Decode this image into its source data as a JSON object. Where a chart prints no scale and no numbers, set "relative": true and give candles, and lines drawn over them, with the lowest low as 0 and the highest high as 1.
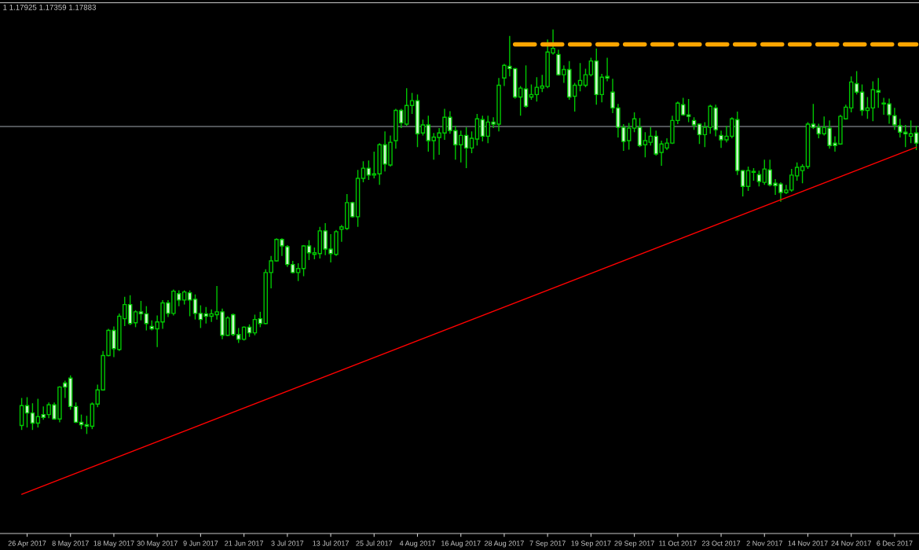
{
  "chart_data": {
    "type": "candlestick",
    "relative": true,
    "grid": false,
    "legend": false,
    "annotations": [
      "1 1.17925 1.17359 1.17883"
    ],
    "categories": [
      null,
      "26 Apr 2017",
      null,
      null,
      null,
      null,
      null,
      null,
      null,
      "8 May 2017",
      null,
      null,
      null,
      null,
      null,
      null,
      null,
      "18 May 2017",
      null,
      null,
      null,
      null,
      null,
      null,
      null,
      "30 May 2017",
      null,
      null,
      null,
      null,
      null,
      null,
      null,
      "9 Jun 2017",
      null,
      null,
      null,
      null,
      null,
      null,
      null,
      "21 Jun 2017",
      null,
      null,
      null,
      null,
      null,
      null,
      null,
      "3 Jul 2017",
      null,
      null,
      null,
      null,
      null,
      null,
      null,
      "13 Jul 2017",
      null,
      null,
      null,
      null,
      null,
      null,
      null,
      "25 Jul 2017",
      null,
      null,
      null,
      null,
      null,
      null,
      null,
      "4 Aug 2017",
      null,
      null,
      null,
      null,
      null,
      null,
      null,
      "16 Aug 2017",
      null,
      null,
      null,
      null,
      null,
      null,
      null,
      "28 Aug 2017",
      null,
      null,
      null,
      null,
      null,
      null,
      null,
      "7 Sep 2017",
      null,
      null,
      null,
      null,
      null,
      null,
      null,
      "19 Sep 2017",
      null,
      null,
      null,
      null,
      null,
      null,
      null,
      "29 Sep 2017",
      null,
      null,
      null,
      null,
      null,
      null,
      null,
      "11 Oct 2017",
      null,
      null,
      null,
      null,
      null,
      null,
      null,
      "23 Oct 2017",
      null,
      null,
      null,
      null,
      null,
      null,
      null,
      "2 Nov 2017",
      null,
      null,
      null,
      null,
      null,
      null,
      null,
      "14 Nov 2017",
      null,
      null,
      null,
      null,
      null,
      null,
      null,
      "24 Nov 2017",
      null,
      null,
      null,
      null,
      null,
      null,
      null,
      "6 Dec 2017",
      null,
      null,
      null,
      null
    ],
    "ref_lines": [
      {
        "axis": "y",
        "value": 0.76,
        "color": "#a0a8b0"
      }
    ],
    "series": [
      {
        "type": "candlestick",
        "color": "#00c800",
        "ohlc": [
          [
            0.021,
            0.089,
            0.01,
            0.07
          ],
          [
            0.07,
            0.091,
            0.016,
            0.052
          ],
          [
            0.052,
            0.076,
            0.01,
            0.027
          ],
          [
            0.027,
            0.087,
            0.016,
            0.043
          ],
          [
            0.048,
            0.068,
            0.035,
            0.041
          ],
          [
            0.048,
            0.078,
            0.039,
            0.072
          ],
          [
            0.072,
            0.078,
            0.035,
            0.037
          ],
          [
            0.037,
            0.118,
            0.029,
            0.116
          ],
          [
            0.126,
            0.132,
            0.089,
            0.116
          ],
          [
            0.138,
            0.145,
            0.06,
            0.068
          ],
          [
            0.068,
            0.078,
            0.027,
            0.029
          ],
          [
            0.029,
            0.048,
            0.012,
            0.023
          ],
          [
            0.023,
            0.045,
            0,
            0.019
          ],
          [
            0.019,
            0.078,
            0.012,
            0.074
          ],
          [
            0.074,
            0.122,
            0.066,
            0.109
          ],
          [
            0.109,
            0.205,
            0.107,
            0.194
          ],
          [
            0.194,
            0.26,
            0.192,
            0.256
          ],
          [
            0.256,
            0.266,
            0.19,
            0.211
          ],
          [
            0.209,
            0.298,
            0.205,
            0.291
          ],
          [
            0.285,
            0.339,
            0.267,
            0.32
          ],
          [
            0.32,
            0.343,
            0.269,
            0.273
          ],
          [
            0.275,
            0.306,
            0.264,
            0.302
          ],
          [
            0.302,
            0.329,
            0.281,
            0.297
          ],
          [
            0.297,
            0.316,
            0.256,
            0.273
          ],
          [
            0.266,
            0.281,
            0.256,
            0.26
          ],
          [
            0.26,
            0.293,
            0.215,
            0.277
          ],
          [
            0.277,
            0.331,
            0.26,
            0.324
          ],
          [
            0.324,
            0.331,
            0.289,
            0.298
          ],
          [
            0.298,
            0.357,
            0.293,
            0.353
          ],
          [
            0.347,
            0.355,
            0.316,
            0.331
          ],
          [
            0.331,
            0.355,
            0.32,
            0.351
          ],
          [
            0.349,
            0.355,
            0.291,
            0.331
          ],
          [
            0.333,
            0.345,
            0.283,
            0.298
          ],
          [
            0.298,
            0.318,
            0.262,
            0.283
          ],
          [
            0.297,
            0.314,
            0.273,
            0.291
          ],
          [
            0.291,
            0.308,
            0.277,
            0.297
          ],
          [
            0.295,
            0.366,
            0.283,
            0.302
          ],
          [
            0.302,
            0.31,
            0.234,
            0.244
          ],
          [
            0.244,
            0.291,
            0.242,
            0.287
          ],
          [
            0.295,
            0.298,
            0.242,
            0.246
          ],
          [
            0.246,
            0.262,
            0.225,
            0.234
          ],
          [
            0.234,
            0.266,
            0.231,
            0.264
          ],
          [
            0.264,
            0.271,
            0.24,
            0.25
          ],
          [
            0.25,
            0.295,
            0.244,
            0.283
          ],
          [
            0.285,
            0.302,
            0.264,
            0.273
          ],
          [
            0.273,
            0.407,
            0.271,
            0.399
          ],
          [
            0.399,
            0.44,
            0.36,
            0.428
          ],
          [
            0.428,
            0.484,
            0.426,
            0.481
          ],
          [
            0.481,
            0.484,
            0.44,
            0.465
          ],
          [
            0.463,
            0.467,
            0.413,
            0.419
          ],
          [
            0.419,
            0.428,
            0.397,
            0.399
          ],
          [
            0.399,
            0.422,
            0.378,
            0.409
          ],
          [
            0.409,
            0.467,
            0.39,
            0.465
          ],
          [
            0.465,
            0.479,
            0.43,
            0.448
          ],
          [
            0.444,
            0.461,
            0.432,
            0.448
          ],
          [
            0.446,
            0.512,
            0.434,
            0.502
          ],
          [
            0.502,
            0.521,
            0.442,
            0.457
          ],
          [
            0.457,
            0.494,
            0.424,
            0.446
          ],
          [
            0.444,
            0.504,
            0.44,
            0.5
          ],
          [
            0.506,
            0.517,
            0.475,
            0.512
          ],
          [
            0.508,
            0.593,
            0.504,
            0.572
          ],
          [
            0.572,
            0.574,
            0.535,
            0.537
          ],
          [
            0.537,
            0.653,
            0.512,
            0.632
          ],
          [
            0.632,
            0.674,
            0.622,
            0.657
          ],
          [
            0.657,
            0.676,
            0.628,
            0.64
          ],
          [
            0.64,
            0.698,
            0.632,
            0.643
          ],
          [
            0.643,
            0.719,
            0.616,
            0.715
          ],
          [
            0.715,
            0.748,
            0.649,
            0.667
          ],
          [
            0.665,
            0.738,
            0.661,
            0.721
          ],
          [
            0.725,
            0.804,
            0.705,
            0.8
          ],
          [
            0.8,
            0.804,
            0.756,
            0.769
          ],
          [
            0.766,
            0.855,
            0.762,
            0.812
          ],
          [
            0.812,
            0.843,
            0.791,
            0.824
          ],
          [
            0.824,
            0.839,
            0.709,
            0.742
          ],
          [
            0.744,
            0.777,
            0.738,
            0.764
          ],
          [
            0.764,
            0.787,
            0.698,
            0.725
          ],
          [
            0.725,
            0.744,
            0.678,
            0.734
          ],
          [
            0.733,
            0.756,
            0.69,
            0.744
          ],
          [
            0.744,
            0.804,
            0.727,
            0.783
          ],
          [
            0.783,
            0.798,
            0.742,
            0.75
          ],
          [
            0.75,
            0.762,
            0.678,
            0.715
          ],
          [
            0.715,
            0.75,
            0.671,
            0.738
          ],
          [
            0.738,
            0.758,
            0.657,
            0.707
          ],
          [
            0.707,
            0.748,
            0.694,
            0.731
          ],
          [
            0.729,
            0.791,
            0.713,
            0.779
          ],
          [
            0.777,
            0.787,
            0.723,
            0.736
          ],
          [
            0.736,
            0.787,
            0.719,
            0.771
          ],
          [
            0.771,
            0.783,
            0.756,
            0.766
          ],
          [
            0.766,
            0.88,
            0.748,
            0.862
          ],
          [
            0.88,
            0.915,
            0.86,
            0.911
          ],
          [
            0.909,
            0.984,
            0.884,
            0.903
          ],
          [
            0.903,
            0.905,
            0.829,
            0.833
          ],
          [
            0.833,
            0.86,
            0.787,
            0.855
          ],
          [
            0.853,
            0.911,
            0.806,
            0.81
          ],
          [
            0.833,
            0.864,
            0.826,
            0.839
          ],
          [
            0.839,
            0.882,
            0.822,
            0.857
          ],
          [
            0.855,
            0.888,
            0.845,
            0.86
          ],
          [
            0.859,
            0.975,
            0.855,
            0.944
          ],
          [
            0.942,
            1,
            0.938,
            0.953
          ],
          [
            0.938,
            0.95,
            0.886,
            0.888
          ],
          [
            0.888,
            0.911,
            0.868,
            0.901
          ],
          [
            0.901,
            0.922,
            0.826,
            0.833
          ],
          [
            0.835,
            0.868,
            0.797,
            0.862
          ],
          [
            0.862,
            0.917,
            0.847,
            0.874
          ],
          [
            0.862,
            0.903,
            0.857,
            0.888
          ],
          [
            0.888,
            0.93,
            0.884,
            0.922
          ],
          [
            0.922,
            0.953,
            0.814,
            0.839
          ],
          [
            0.839,
            0.89,
            0.82,
            0.882
          ],
          [
            0.884,
            0.93,
            0.872,
            0.88
          ],
          [
            0.845,
            0.878,
            0.793,
            0.806
          ],
          [
            0.806,
            0.816,
            0.733,
            0.758
          ],
          [
            0.758,
            0.766,
            0.7,
            0.723
          ],
          [
            0.725,
            0.769,
            0.703,
            0.756
          ],
          [
            0.756,
            0.795,
            0.746,
            0.779
          ],
          [
            0.758,
            0.781,
            0.709,
            0.713
          ],
          [
            0.715,
            0.746,
            0.684,
            0.725
          ],
          [
            0.721,
            0.758,
            0.713,
            0.736
          ],
          [
            0.736,
            0.75,
            0.688,
            0.692
          ],
          [
            0.696,
            0.725,
            0.663,
            0.717
          ],
          [
            0.707,
            0.731,
            0.702,
            0.719
          ],
          [
            0.719,
            0.787,
            0.717,
            0.775
          ],
          [
            0.775,
            0.822,
            0.766,
            0.818
          ],
          [
            0.814,
            0.831,
            0.787,
            0.789
          ],
          [
            0.789,
            0.828,
            0.771,
            0.785
          ],
          [
            0.775,
            0.783,
            0.752,
            0.764
          ],
          [
            0.766,
            0.767,
            0.717,
            0.74
          ],
          [
            0.74,
            0.771,
            0.709,
            0.758
          ],
          [
            0.758,
            0.814,
            0.742,
            0.81
          ],
          [
            0.806,
            0.814,
            0.736,
            0.752
          ],
          [
            0.738,
            0.75,
            0.707,
            0.727
          ],
          [
            0.727,
            0.762,
            0.721,
            0.736
          ],
          [
            0.736,
            0.783,
            0.731,
            0.779
          ],
          [
            0.777,
            0.797,
            0.64,
            0.651
          ],
          [
            0.651,
            0.653,
            0.587,
            0.612
          ],
          [
            0.612,
            0.661,
            0.601,
            0.651
          ],
          [
            0.647,
            0.657,
            0.626,
            0.649
          ],
          [
            0.641,
            0.651,
            0.612,
            0.624
          ],
          [
            0.622,
            0.678,
            0.616,
            0.655
          ],
          [
            0.653,
            0.678,
            0.612,
            0.616
          ],
          [
            0.62,
            0.63,
            0.591,
            0.614
          ],
          [
            0.618,
            0.622,
            0.574,
            0.597
          ],
          [
            0.597,
            0.616,
            0.593,
            0.603
          ],
          [
            0.603,
            0.655,
            0.599,
            0.64
          ],
          [
            0.638,
            0.671,
            0.626,
            0.659
          ],
          [
            0.651,
            0.667,
            0.62,
            0.661
          ],
          [
            0.661,
            0.771,
            0.655,
            0.766
          ],
          [
            0.766,
            0.816,
            0.754,
            0.758
          ],
          [
            0.758,
            0.767,
            0.731,
            0.742
          ],
          [
            0.742,
            0.785,
            0.738,
            0.758
          ],
          [
            0.756,
            0.775,
            0.705,
            0.713
          ],
          [
            0.719,
            0.736,
            0.698,
            0.713
          ],
          [
            0.717,
            0.789,
            0.715,
            0.785
          ],
          [
            0.779,
            0.814,
            0.777,
            0.808
          ],
          [
            0.806,
            0.884,
            0.795,
            0.87
          ],
          [
            0.866,
            0.897,
            0.839,
            0.845
          ],
          [
            0.845,
            0.864,
            0.787,
            0.8
          ],
          [
            0.8,
            0.833,
            0.779,
            0.806
          ],
          [
            0.806,
            0.872,
            0.773,
            0.851
          ],
          [
            0.849,
            0.88,
            0.806,
            0.845
          ],
          [
            0.818,
            0.831,
            0.789,
            0.816
          ],
          [
            0.816,
            0.829,
            0.767,
            0.789
          ],
          [
            0.787,
            0.806,
            0.752,
            0.764
          ],
          [
            0.762,
            0.779,
            0.733,
            0.746
          ],
          [
            0.746,
            0.764,
            0.709,
            0.742
          ],
          [
            0.736,
            0.775,
            0.719,
            0.742
          ],
          [
            0.744,
            0.762,
            0.702,
            0.719
          ]
        ]
      },
      {
        "type": "line",
        "color": "#ff0000",
        "line_style": "solid",
        "values": [
          -0.149,
          null,
          null,
          null,
          null,
          null,
          null,
          null,
          null,
          null,
          null,
          null,
          null,
          null,
          null,
          null,
          null,
          null,
          null,
          null,
          null,
          null,
          null,
          null,
          null,
          null,
          null,
          null,
          null,
          null,
          null,
          null,
          null,
          null,
          null,
          null,
          null,
          null,
          null,
          null,
          null,
          null,
          null,
          null,
          null,
          null,
          null,
          null,
          null,
          null,
          null,
          null,
          null,
          null,
          null,
          null,
          null,
          null,
          null,
          null,
          null,
          null,
          null,
          null,
          null,
          null,
          null,
          null,
          null,
          null,
          null,
          null,
          null,
          null,
          null,
          null,
          null,
          null,
          null,
          null,
          null,
          null,
          null,
          null,
          null,
          null,
          null,
          null,
          null,
          null,
          null,
          null,
          null,
          null,
          null,
          null,
          null,
          null,
          null,
          null,
          null,
          null,
          null,
          null,
          null,
          null,
          null,
          null,
          null,
          null,
          null,
          null,
          null,
          null,
          null,
          null,
          null,
          null,
          null,
          null,
          null,
          null,
          null,
          null,
          null,
          null,
          null,
          null,
          null,
          null,
          null,
          null,
          null,
          null,
          null,
          null,
          null,
          null,
          null,
          null,
          null,
          null,
          null,
          null,
          null,
          null,
          null,
          null,
          null,
          null,
          null,
          null,
          null,
          null,
          null,
          null,
          null,
          null,
          null,
          null,
          null,
          null,
          null,
          null,
          null,
          0.709
        ]
      },
      {
        "type": "line",
        "color": "#ffa500",
        "line_style": "dashed",
        "values": [
          null,
          null,
          null,
          null,
          null,
          null,
          null,
          null,
          null,
          null,
          null,
          null,
          null,
          null,
          null,
          null,
          null,
          null,
          null,
          null,
          null,
          null,
          null,
          null,
          null,
          null,
          null,
          null,
          null,
          null,
          null,
          null,
          null,
          null,
          null,
          null,
          null,
          null,
          null,
          null,
          null,
          null,
          null,
          null,
          null,
          null,
          null,
          null,
          null,
          null,
          null,
          null,
          null,
          null,
          null,
          null,
          null,
          null,
          null,
          null,
          null,
          null,
          null,
          null,
          null,
          null,
          null,
          null,
          null,
          null,
          null,
          null,
          null,
          null,
          null,
          null,
          null,
          null,
          null,
          null,
          null,
          null,
          null,
          null,
          null,
          null,
          null,
          null,
          null,
          null,
          null,
          0.963,
          null,
          null,
          null,
          null,
          null,
          null,
          null,
          null,
          null,
          null,
          null,
          null,
          null,
          null,
          null,
          null,
          null,
          null,
          null,
          null,
          null,
          null,
          null,
          null,
          null,
          null,
          null,
          null,
          null,
          null,
          null,
          null,
          null,
          null,
          null,
          null,
          null,
          null,
          null,
          null,
          null,
          null,
          null,
          null,
          null,
          null,
          null,
          null,
          null,
          null,
          null,
          null,
          null,
          null,
          null,
          null,
          null,
          null,
          null,
          null,
          null,
          null,
          null,
          null,
          null,
          null,
          null,
          null,
          null,
          null,
          null,
          null,
          null,
          0.963
        ]
      }
    ]
  }
}
